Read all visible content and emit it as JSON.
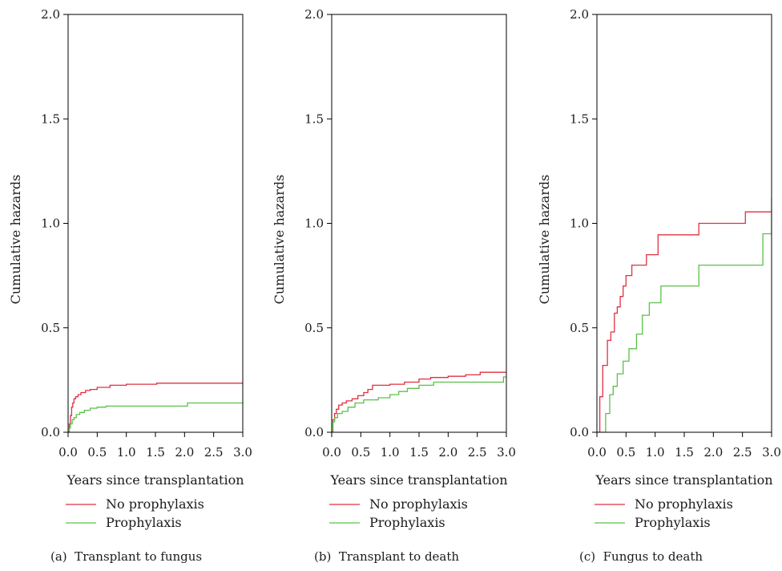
{
  "colors": {
    "no_prophylaxis": "#e03040",
    "prophylaxis": "#5cc04a",
    "axis": "#000000"
  },
  "chart_data": [
    {
      "type": "line",
      "caption": "(a)  Transplant to fungus",
      "xlabel": "Years since transplantation",
      "ylabel": "Cumulative hazards",
      "xlim": [
        0,
        3.0
      ],
      "ylim": [
        0,
        2.0
      ],
      "xticks": [
        "0.0",
        "0.5",
        "1.0",
        "1.5",
        "2.0",
        "2.5",
        "3.0"
      ],
      "yticks": [
        "0.0",
        "0.5",
        "1.0",
        "1.5",
        "2.0"
      ],
      "legend_position": "below",
      "series": [
        {
          "name": "No prophylaxis",
          "color": "#e03040",
          "step": true,
          "x": [
            0.0,
            0.02,
            0.04,
            0.06,
            0.08,
            0.1,
            0.13,
            0.17,
            0.22,
            0.3,
            0.38,
            0.5,
            0.72,
            1.0,
            1.52,
            3.0
          ],
          "y": [
            0.0,
            0.04,
            0.08,
            0.12,
            0.14,
            0.16,
            0.17,
            0.18,
            0.19,
            0.2,
            0.205,
            0.215,
            0.225,
            0.23,
            0.235,
            0.235
          ]
        },
        {
          "name": "Prophylaxis",
          "color": "#5cc04a",
          "step": true,
          "x": [
            0.0,
            0.02,
            0.04,
            0.07,
            0.1,
            0.14,
            0.2,
            0.28,
            0.38,
            0.5,
            0.65,
            2.05,
            3.0
          ],
          "y": [
            0.0,
            0.02,
            0.04,
            0.06,
            0.07,
            0.085,
            0.095,
            0.105,
            0.115,
            0.12,
            0.125,
            0.14,
            0.14
          ]
        }
      ]
    },
    {
      "type": "line",
      "caption": "(b)  Transplant to death",
      "xlabel": "Years since transplantation",
      "ylabel": "Cumulative hazards",
      "xlim": [
        0,
        3.0
      ],
      "ylim": [
        0,
        2.0
      ],
      "xticks": [
        "0.0",
        "0.5",
        "1.0",
        "1.5",
        "2.0",
        "2.5",
        "3.0"
      ],
      "yticks": [
        "0.0",
        "0.5",
        "1.0",
        "1.5",
        "2.0"
      ],
      "legend_position": "below",
      "series": [
        {
          "name": "No prophylaxis",
          "color": "#e03040",
          "step": true,
          "x": [
            0.0,
            0.02,
            0.05,
            0.08,
            0.12,
            0.18,
            0.25,
            0.35,
            0.45,
            0.55,
            0.62,
            0.7,
            1.0,
            1.25,
            1.5,
            1.7,
            2.0,
            2.3,
            2.55,
            3.0
          ],
          "y": [
            0.0,
            0.06,
            0.09,
            0.11,
            0.13,
            0.14,
            0.15,
            0.16,
            0.175,
            0.19,
            0.205,
            0.225,
            0.23,
            0.24,
            0.255,
            0.262,
            0.268,
            0.275,
            0.287,
            0.287
          ]
        },
        {
          "name": "Prophylaxis",
          "color": "#5cc04a",
          "step": true,
          "x": [
            0.0,
            0.02,
            0.05,
            0.1,
            0.18,
            0.28,
            0.4,
            0.55,
            0.8,
            1.0,
            1.15,
            1.3,
            1.5,
            1.75,
            2.95,
            3.0
          ],
          "y": [
            0.0,
            0.05,
            0.07,
            0.09,
            0.1,
            0.12,
            0.14,
            0.155,
            0.165,
            0.18,
            0.195,
            0.21,
            0.225,
            0.24,
            0.265,
            0.265
          ]
        }
      ]
    },
    {
      "type": "line",
      "caption": "(c)  Fungus to death",
      "xlabel": "Years since transplantation",
      "ylabel": "Cumulative hazards",
      "xlim": [
        0,
        3.0
      ],
      "ylim": [
        0,
        2.0
      ],
      "xticks": [
        "0.0",
        "0.5",
        "1.0",
        "1.5",
        "2.0",
        "2.5",
        "3.0"
      ],
      "yticks": [
        "0.0",
        "0.5",
        "1.0",
        "1.5",
        "2.0"
      ],
      "legend_position": "below",
      "series": [
        {
          "name": "No prophylaxis",
          "color": "#e03040",
          "step": true,
          "x": [
            0.0,
            0.05,
            0.1,
            0.18,
            0.24,
            0.3,
            0.35,
            0.4,
            0.45,
            0.5,
            0.55,
            0.6,
            0.85,
            0.9,
            1.05,
            1.75,
            2.55,
            3.0
          ],
          "y": [
            0.0,
            0.17,
            0.32,
            0.44,
            0.48,
            0.57,
            0.6,
            0.65,
            0.7,
            0.75,
            0.75,
            0.8,
            0.85,
            0.85,
            0.945,
            1.0,
            1.055,
            1.055
          ]
        },
        {
          "name": "Prophylaxis",
          "color": "#5cc04a",
          "step": true,
          "x": [
            0.0,
            0.15,
            0.22,
            0.28,
            0.35,
            0.45,
            0.55,
            0.68,
            0.78,
            0.9,
            1.1,
            1.75,
            2.85,
            3.0
          ],
          "y": [
            0.0,
            0.09,
            0.18,
            0.22,
            0.28,
            0.34,
            0.4,
            0.47,
            0.56,
            0.62,
            0.7,
            0.8,
            0.95,
            1.12
          ]
        }
      ]
    }
  ]
}
